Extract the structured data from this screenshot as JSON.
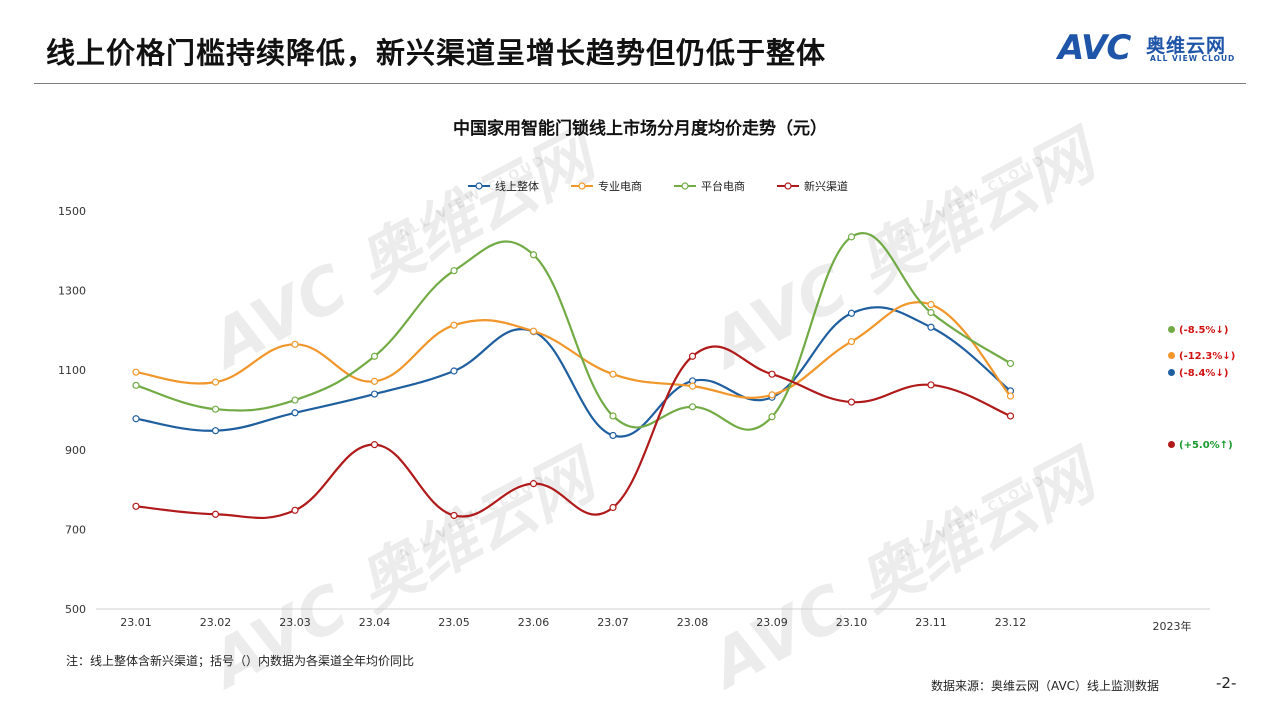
{
  "header": {
    "title": "线上价格门槛持续降低，新兴渠道呈增长趋势但仍低于整体",
    "logo_text": "AVC",
    "logo_cn": "奥维云网",
    "logo_en": "ALL VIEW CLOUD"
  },
  "chart_data": {
    "type": "line",
    "title": "中国家用智能门锁线上市场分月度均价走势（元）",
    "categories": [
      "23.01",
      "23.02",
      "23.03",
      "23.04",
      "23.05",
      "23.06",
      "23.07",
      "23.08",
      "23.09",
      "23.10",
      "23.11",
      "23.12"
    ],
    "x_axis_unit": "2023年",
    "ylim": [
      500,
      1500
    ],
    "yticks": [
      500,
      700,
      900,
      1100,
      1300,
      1500
    ],
    "grid": false,
    "legend_position": "top-center",
    "series": [
      {
        "name": "线上整体",
        "color": "#1f5fa0",
        "values": [
          978,
          948,
          993,
          1040,
          1098,
          1197,
          936,
          1073,
          1032,
          1243,
          1208,
          1048
        ],
        "yoy": "(-8.4%↓)",
        "yoy_color": "#d11313"
      },
      {
        "name": "专业电商",
        "color": "#f0962a",
        "values": [
          1095,
          1070,
          1165,
          1072,
          1213,
          1198,
          1090,
          1060,
          1038,
          1172,
          1265,
          1035
        ],
        "yoy": "(-12.3%↓)",
        "yoy_color": "#d11313"
      },
      {
        "name": "平台电商",
        "color": "#72ab46",
        "values": [
          1062,
          1002,
          1025,
          1135,
          1350,
          1390,
          985,
          1008,
          983,
          1435,
          1245,
          1117
        ],
        "yoy": "(-8.5%↓)",
        "yoy_color": "#d11313"
      },
      {
        "name": "新兴渠道",
        "color": "#b01a1a",
        "values": [
          758,
          738,
          748,
          913,
          735,
          815,
          755,
          1135,
          1090,
          1020,
          1063,
          985
        ],
        "yoy": "(+5.0%↑)",
        "yoy_color": "#1a9a2e"
      }
    ]
  },
  "watermark": {
    "cn": "奥维云网",
    "en": "ALL VIEW CLOUD",
    "logo": "AVC"
  },
  "footer": {
    "note": "注：线上整体含新兴渠道；括号（）内数据为各渠道全年均价同比",
    "source": "数据来源：奥维云网（AVC）线上监测数据",
    "page": "-2-"
  }
}
